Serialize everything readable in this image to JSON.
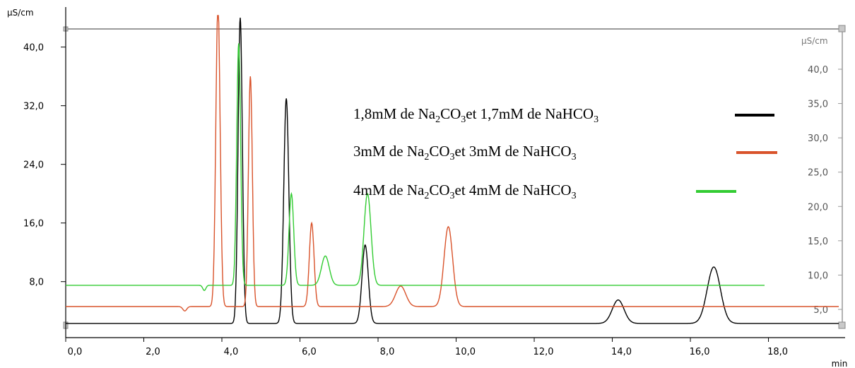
{
  "chart_data": {
    "type": "line",
    "x_unit": "min",
    "y_unit_left": "µS/cm",
    "y_unit_right": "µS/cm",
    "x_ticks": [
      "0,0",
      "2,0",
      "4,0",
      "6,0",
      "8,0",
      "10,0",
      "12,0",
      "14,0",
      "16,0",
      "18,0"
    ],
    "y_ticks_left": [
      "8,0",
      "16,0",
      "24,0",
      "32,0",
      "40,0"
    ],
    "y_ticks_right": [
      "5,0",
      "10,0",
      "15,0",
      "20,0",
      "25,0",
      "30,0",
      "35,0",
      "40,0"
    ],
    "xlim": [
      0,
      19.8
    ],
    "ylim": [
      2.0,
      44.3
    ],
    "series": [
      {
        "name": "1,8mM de Na2CO3et 1,7mM de NaHCO3",
        "legend": {
          "pre": "1,8mM de Na",
          "s1": "2",
          "mid1": "CO",
          "s2": "3",
          "mid2": "et 1,7mM de NaHCO",
          "s3": "3"
        },
        "color": "#000000",
        "baseline": 2.3,
        "x_end": 19.8,
        "dips": [],
        "peaks": [
          {
            "x": 4.47,
            "y": 44.0,
            "w": 0.055
          },
          {
            "x": 5.65,
            "y": 33.0,
            "w": 0.065
          },
          {
            "x": 7.67,
            "y": 13.0,
            "w": 0.08
          },
          {
            "x": 14.15,
            "y": 5.5,
            "w": 0.15
          },
          {
            "x": 16.6,
            "y": 10.0,
            "w": 0.17
          }
        ]
      },
      {
        "name": "3mM de Na2CO3et 3mM de NaHCO3",
        "legend": {
          "pre": "3mM de Na",
          "s1": "2",
          "mid1": "CO",
          "s2": "3",
          "mid2": "et 3mM de NaHCO",
          "s3": "3"
        },
        "color": "#d9532b",
        "baseline": 4.6,
        "x_end": 19.8,
        "dips": [
          {
            "x": 3.05,
            "y": -0.6,
            "w": 0.05
          }
        ],
        "peaks": [
          {
            "x": 3.9,
            "y": 46.0,
            "w": 0.055
          },
          {
            "x": 4.73,
            "y": 36.0,
            "w": 0.05
          },
          {
            "x": 6.3,
            "y": 16.0,
            "w": 0.06
          },
          {
            "x": 8.58,
            "y": 7.4,
            "w": 0.13
          },
          {
            "x": 9.8,
            "y": 15.5,
            "w": 0.11
          }
        ]
      },
      {
        "name": "4mM de Na2CO3et 4mM de NaHCO3",
        "legend": {
          "pre": "4mM de Na",
          "s1": "2",
          "mid1": "CO",
          "s2": "3",
          "mid2": "et 4mM de NaHCO",
          "s3": "3"
        },
        "color": "#33cc33",
        "baseline": 7.5,
        "x_end": 17.9,
        "dips": [
          {
            "x": 3.55,
            "y": -0.7,
            "w": 0.04
          }
        ],
        "peaks": [
          {
            "x": 4.43,
            "y": 40.5,
            "w": 0.05
          },
          {
            "x": 5.78,
            "y": 20.0,
            "w": 0.06
          },
          {
            "x": 6.65,
            "y": 11.5,
            "w": 0.1
          },
          {
            "x": 7.73,
            "y": 20.0,
            "w": 0.09
          }
        ]
      }
    ]
  }
}
